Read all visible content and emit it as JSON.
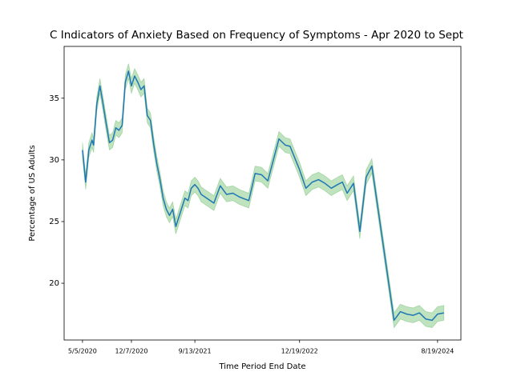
{
  "chart_data": {
    "type": "line",
    "title": "C Indicators of Anxiety Based on Frequency of Symptoms - Apr 2020 to Sept",
    "x_label": "Time Period End Date",
    "y_label": "Percentage of US Adults",
    "x": [
      "5/5/2020",
      "5/19/2020",
      "6/2/2020",
      "6/16/2020",
      "6/23/2020",
      "7/7/2020",
      "7/21/2020",
      "8/4/2020",
      "8/18/2020",
      "9/1/2020",
      "9/15/2020",
      "9/29/2020",
      "10/13/2020",
      "10/27/2020",
      "11/10/2020",
      "11/24/2020",
      "12/7/2020",
      "12/21/2020",
      "1/4/2021",
      "1/18/2021",
      "2/1/2021",
      "2/15/2021",
      "3/1/2021",
      "3/15/2021",
      "3/29/2021",
      "4/12/2021",
      "4/26/2021",
      "5/10/2021",
      "5/24/2021",
      "6/7/2021",
      "6/21/2021",
      "7/31/2021",
      "8/14/2021",
      "8/28/2021",
      "9/13/2021",
      "9/27/2021",
      "10/11/2021",
      "12/6/2021",
      "1/3/2022",
      "1/31/2022",
      "2/28/2022",
      "3/28/2022",
      "4/25/2022",
      "5/9/2022",
      "6/6/2022",
      "7/4/2022",
      "8/1/2022",
      "9/19/2022",
      "10/17/2022",
      "11/7/2022",
      "12/19/2022",
      "1/16/2023",
      "2/13/2023",
      "3/13/2023",
      "4/10/2023",
      "5/8/2023",
      "6/5/2023",
      "6/26/2023",
      "7/17/2023",
      "8/14/2023",
      "9/11/2023",
      "10/9/2023",
      "11/3/2023",
      "2/9/2024",
      "3/8/2024",
      "4/5/2024",
      "5/3/2024",
      "5/31/2024",
      "6/28/2024",
      "7/26/2024",
      "8/19/2024",
      "9/16/2024"
    ],
    "series": [
      {
        "color": "#1f77b4",
        "values": [
          30.8,
          28.2,
          30.8,
          31.6,
          31.2,
          34.5,
          36.0,
          34.5,
          32.9,
          31.4,
          31.6,
          32.6,
          32.4,
          32.8,
          36.3,
          37.2,
          36.0,
          36.8,
          36.3,
          35.7,
          36.0,
          33.6,
          33.2,
          31.3,
          29.7,
          28.4,
          26.9,
          26.0,
          25.5,
          26.0,
          24.6,
          26.9,
          26.7,
          27.7,
          28.0,
          27.7,
          27.2,
          26.5,
          27.9,
          27.2,
          27.3,
          27.0,
          26.8,
          26.7,
          28.9,
          28.8,
          28.3,
          31.7,
          31.2,
          31.1,
          29.2,
          27.7,
          28.2,
          28.4,
          28.1,
          27.7,
          28.0,
          28.2,
          27.3,
          28.1,
          24.2,
          28.6,
          29.5,
          17.0,
          17.7,
          17.5,
          17.4,
          17.6,
          17.1,
          17.0,
          17.5,
          17.6
        ]
      }
    ],
    "ci": {
      "color": "#2ca02c",
      "low": [
        30.2,
        27.6,
        30.2,
        31.0,
        30.6,
        33.9,
        35.4,
        33.9,
        32.3,
        30.8,
        31.0,
        32.0,
        31.8,
        32.2,
        35.7,
        36.6,
        35.4,
        36.2,
        35.7,
        35.1,
        35.4,
        33.0,
        32.6,
        30.7,
        29.1,
        27.8,
        26.3,
        25.4,
        24.9,
        25.4,
        24.0,
        26.3,
        26.1,
        27.1,
        27.4,
        27.1,
        26.6,
        25.9,
        27.3,
        26.6,
        26.7,
        26.4,
        26.2,
        26.1,
        28.3,
        28.2,
        27.7,
        31.1,
        30.6,
        30.5,
        28.6,
        27.1,
        27.6,
        27.8,
        27.5,
        27.1,
        27.4,
        27.6,
        26.7,
        27.5,
        23.6,
        28.0,
        28.9,
        16.4,
        17.1,
        16.9,
        16.8,
        17.0,
        16.5,
        16.4,
        16.9,
        17.0
      ],
      "high": [
        31.4,
        28.8,
        31.4,
        32.2,
        31.8,
        35.1,
        36.6,
        35.1,
        33.5,
        32.0,
        32.2,
        33.2,
        33.0,
        33.4,
        36.9,
        37.8,
        36.6,
        37.4,
        36.9,
        36.3,
        36.6,
        34.2,
        33.8,
        31.9,
        30.3,
        29.0,
        27.5,
        26.6,
        26.1,
        26.6,
        25.2,
        27.5,
        27.3,
        28.3,
        28.6,
        28.3,
        27.8,
        27.1,
        28.5,
        27.8,
        27.9,
        27.6,
        27.4,
        27.3,
        29.5,
        29.4,
        28.9,
        32.3,
        31.8,
        31.7,
        29.8,
        28.3,
        28.8,
        29.0,
        28.7,
        28.3,
        28.6,
        28.8,
        27.9,
        28.7,
        24.8,
        29.2,
        30.1,
        17.6,
        18.3,
        18.1,
        18.0,
        18.2,
        17.7,
        17.6,
        18.1,
        18.2
      ]
    },
    "xlim": [
      "2/14/2020",
      "11/30/2024"
    ],
    "xticks": [
      "5/5/2020",
      "12/7/2020",
      "9/13/2021",
      "12/19/2022",
      "8/19/2024"
    ],
    "ylim": [
      15.4,
      39.2
    ],
    "yticks": [
      20,
      25,
      30,
      35
    ],
    "grid": false
  }
}
